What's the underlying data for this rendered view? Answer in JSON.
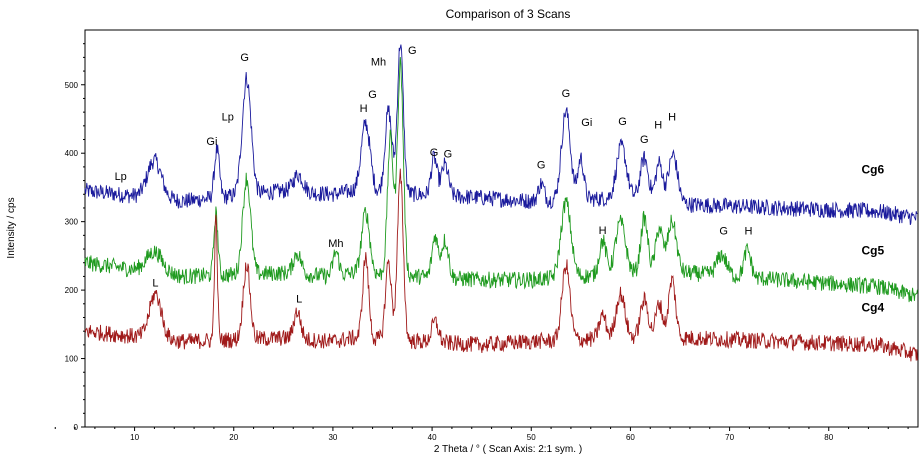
{
  "chart_data": {
    "type": "line",
    "title": "Comparison of 3 Scans",
    "xlabel": "2 Theta / °    ( Scan Axis: 2:1 sym. )",
    "ylabel": "Intensity / cps",
    "xlim": [
      5,
      89
    ],
    "ylim": [
      0,
      580
    ],
    "xticks": [
      10,
      20,
      30,
      40,
      50,
      60,
      70,
      80
    ],
    "yticks": [
      0,
      100,
      200,
      300,
      400,
      500
    ],
    "grid": false,
    "series": [
      {
        "name": "Cg6",
        "color": "#1a1a9c",
        "baseline": [
          [
            5,
            345
          ],
          [
            15,
            330
          ],
          [
            25,
            345
          ],
          [
            30,
            340
          ],
          [
            32,
            345
          ],
          [
            45,
            335
          ],
          [
            50,
            330
          ],
          [
            60,
            335
          ],
          [
            66,
            325
          ],
          [
            75,
            320
          ],
          [
            85,
            315
          ],
          [
            89,
            305
          ]
        ],
        "peaks": [
          [
            12,
            55,
            0.7
          ],
          [
            18.3,
            70,
            0.25
          ],
          [
            21.3,
            170,
            0.45
          ],
          [
            26.5,
            25,
            0.5
          ],
          [
            33.3,
            100,
            0.45
          ],
          [
            35.6,
            120,
            0.35
          ],
          [
            36.8,
            220,
            0.3
          ],
          [
            40.2,
            55,
            0.3
          ],
          [
            41.3,
            45,
            0.35
          ],
          [
            51,
            25,
            0.3
          ],
          [
            53.5,
            130,
            0.45
          ],
          [
            55,
            60,
            0.3
          ],
          [
            59.1,
            75,
            0.5
          ],
          [
            61.4,
            60,
            0.4
          ],
          [
            62.9,
            55,
            0.35
          ],
          [
            64.3,
            70,
            0.45
          ]
        ]
      },
      {
        "name": "Cg5",
        "color": "#1f9a1f",
        "baseline": [
          [
            5,
            240
          ],
          [
            15,
            220
          ],
          [
            25,
            225
          ],
          [
            30,
            220
          ],
          [
            32,
            225
          ],
          [
            45,
            215
          ],
          [
            50,
            215
          ],
          [
            60,
            225
          ],
          [
            66,
            225
          ],
          [
            75,
            215
          ],
          [
            85,
            205
          ],
          [
            89,
            190
          ]
        ],
        "peaks": [
          [
            12,
            30,
            0.8
          ],
          [
            18.2,
            90,
            0.2
          ],
          [
            21.3,
            140,
            0.4
          ],
          [
            26.4,
            30,
            0.4
          ],
          [
            30.3,
            35,
            0.3
          ],
          [
            33.3,
            90,
            0.4
          ],
          [
            35.8,
            200,
            0.3
          ],
          [
            36.8,
            310,
            0.3
          ],
          [
            40.3,
            60,
            0.3
          ],
          [
            41.3,
            55,
            0.35
          ],
          [
            53.5,
            110,
            0.5
          ],
          [
            57.2,
            50,
            0.35
          ],
          [
            59,
            75,
            0.5
          ],
          [
            61.4,
            80,
            0.35
          ],
          [
            62.9,
            65,
            0.35
          ],
          [
            64.2,
            75,
            0.45
          ],
          [
            69.2,
            30,
            0.5
          ],
          [
            71.8,
            40,
            0.35
          ]
        ]
      },
      {
        "name": "Cg4",
        "color": "#a01a1a",
        "baseline": [
          [
            5,
            140
          ],
          [
            15,
            125
          ],
          [
            25,
            130
          ],
          [
            30,
            125
          ],
          [
            32,
            130
          ],
          [
            45,
            120
          ],
          [
            50,
            125
          ],
          [
            60,
            130
          ],
          [
            66,
            130
          ],
          [
            75,
            125
          ],
          [
            85,
            120
          ],
          [
            89,
            105
          ]
        ],
        "peaks": [
          [
            12.1,
            65,
            0.6
          ],
          [
            18.2,
            175,
            0.15
          ],
          [
            21.3,
            110,
            0.35
          ],
          [
            26.4,
            40,
            0.35
          ],
          [
            33.3,
            120,
            0.3
          ],
          [
            35.6,
            115,
            0.3
          ],
          [
            36.8,
            240,
            0.3
          ],
          [
            40.3,
            30,
            0.35
          ],
          [
            53.5,
            110,
            0.4
          ],
          [
            57.2,
            35,
            0.35
          ],
          [
            59,
            65,
            0.45
          ],
          [
            61.4,
            55,
            0.4
          ],
          [
            62.9,
            50,
            0.35
          ],
          [
            64.2,
            85,
            0.35
          ]
        ]
      }
    ],
    "series_labels": [
      {
        "text": "Cg6",
        "x": 83.3,
        "y": 370
      },
      {
        "text": "Cg5",
        "x": 83.3,
        "y": 252
      },
      {
        "text": "Cg4",
        "x": 83.3,
        "y": 169
      }
    ],
    "annotations": [
      {
        "text": "Lp",
        "x": 8.6,
        "y": 361
      },
      {
        "text": "Gi",
        "x": 17.8,
        "y": 412
      },
      {
        "text": "Lp",
        "x": 19.4,
        "y": 448
      },
      {
        "text": "G",
        "x": 21.1,
        "y": 535
      },
      {
        "text": "H",
        "x": 33.1,
        "y": 460
      },
      {
        "text": "G",
        "x": 34.0,
        "y": 481
      },
      {
        "text": "Mh",
        "x": 34.6,
        "y": 528
      },
      {
        "text": "G",
        "x": 38.0,
        "y": 545
      },
      {
        "text": "G",
        "x": 40.2,
        "y": 396
      },
      {
        "text": "G",
        "x": 41.6,
        "y": 394
      },
      {
        "text": "G",
        "x": 51.0,
        "y": 378
      },
      {
        "text": "G",
        "x": 53.5,
        "y": 482
      },
      {
        "text": "Gi",
        "x": 55.6,
        "y": 440
      },
      {
        "text": "G",
        "x": 59.2,
        "y": 441
      },
      {
        "text": "G",
        "x": 61.4,
        "y": 415
      },
      {
        "text": "H",
        "x": 62.8,
        "y": 436
      },
      {
        "text": "H",
        "x": 64.2,
        "y": 448
      },
      {
        "text": "Mh",
        "x": 30.3,
        "y": 263
      },
      {
        "text": "H",
        "x": 57.2,
        "y": 282
      },
      {
        "text": "G",
        "x": 69.4,
        "y": 281
      },
      {
        "text": "H",
        "x": 71.9,
        "y": 281
      },
      {
        "text": "L",
        "x": 12.1,
        "y": 205
      },
      {
        "text": "L",
        "x": 26.6,
        "y": 182
      }
    ]
  }
}
